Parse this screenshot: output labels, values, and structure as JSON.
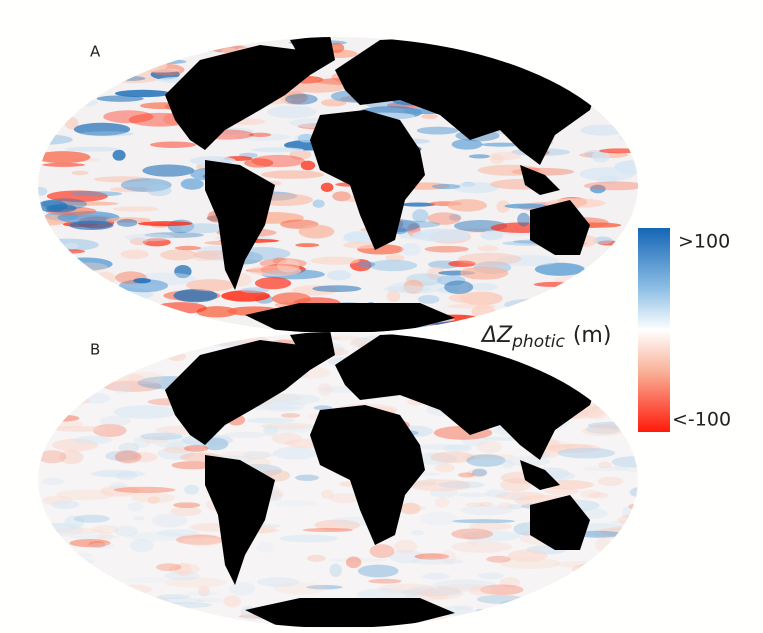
{
  "panels": [
    {
      "label": "A"
    },
    {
      "label": "B"
    }
  ],
  "colorbar": {
    "max_label": ">100",
    "min_label": "<-100",
    "title": {
      "symbol": "ΔZ",
      "subscript": "photic",
      "unit": "(m)"
    }
  }
}
